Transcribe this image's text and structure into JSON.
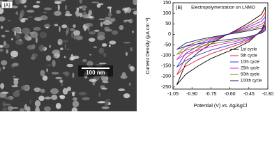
{
  "panel_a": {
    "label": "(A)",
    "scale_bar": "100 nm"
  },
  "panel_b": {
    "label": "(B)"
  },
  "chart_data": {
    "type": "line",
    "title": "Electropolymerization on LNMO",
    "x_label": "Potential (V) vs. Ag/AgCl",
    "y_label": "Current Density (μA.cm⁻²)",
    "x": [
      -1.02,
      -0.95,
      -0.85,
      -0.75,
      -0.65,
      -0.55,
      -0.45,
      -0.35,
      -0.32,
      -0.32,
      -0.35,
      -0.45,
      -0.55,
      -0.65,
      -0.75,
      -0.85,
      -0.95
    ],
    "series": [
      {
        "name": "1st cycle",
        "color": "#000000",
        "values": [
          -240,
          -190,
          -150,
          -115,
          -90,
          -65,
          -35,
          20,
          60,
          130,
          95,
          55,
          20,
          -10,
          -45,
          -85,
          -140
        ]
      },
      {
        "name": "5th cycle",
        "color": "#e8202a",
        "values": [
          -192,
          -152,
          -120,
          -92,
          -72,
          -52,
          -28,
          16,
          48,
          104,
          76,
          44,
          16,
          -8,
          -36,
          -68,
          -112
        ]
      },
      {
        "name": "10th cycle",
        "color": "#2b3bd6",
        "values": [
          -156,
          -124,
          -98,
          -75,
          -59,
          -42,
          -23,
          13,
          39,
          85,
          62,
          36,
          13,
          -7,
          -29,
          -55,
          -91
        ]
      },
      {
        "name": "25th cycle",
        "color": "#e020d8",
        "values": [
          -120,
          -95,
          -75,
          -58,
          -45,
          -33,
          -18,
          10,
          30,
          65,
          48,
          28,
          10,
          -5,
          -23,
          -43,
          -70
        ]
      },
      {
        "name": "50th cycle",
        "color": "#808000",
        "values": [
          -96,
          -76,
          -60,
          -46,
          -36,
          -26,
          -14,
          8,
          24,
          52,
          38,
          22,
          8,
          -4,
          -18,
          -34,
          -56
        ]
      },
      {
        "name": "100th cycle",
        "color": "#1a1a80",
        "values": [
          -72,
          -57,
          -45,
          -35,
          -27,
          -20,
          -11,
          6,
          18,
          39,
          29,
          17,
          6,
          -3,
          -14,
          -26,
          -42
        ]
      }
    ],
    "xlim": [
      -1.05,
      -0.3
    ],
    "xticks": [
      -1.05,
      {
        "value": -0.9,
        "label": "-0.90"
      },
      -0.75,
      {
        "value": -0.6,
        "label": "-0.60"
      },
      -0.45,
      {
        "value": -0.3,
        "label": "-0.30"
      }
    ],
    "ylim": [
      -260,
      150
    ],
    "yticks": [
      -250,
      -200,
      -150,
      -100,
      -50,
      0,
      50,
      100,
      150
    ],
    "legend": "lower-right"
  }
}
